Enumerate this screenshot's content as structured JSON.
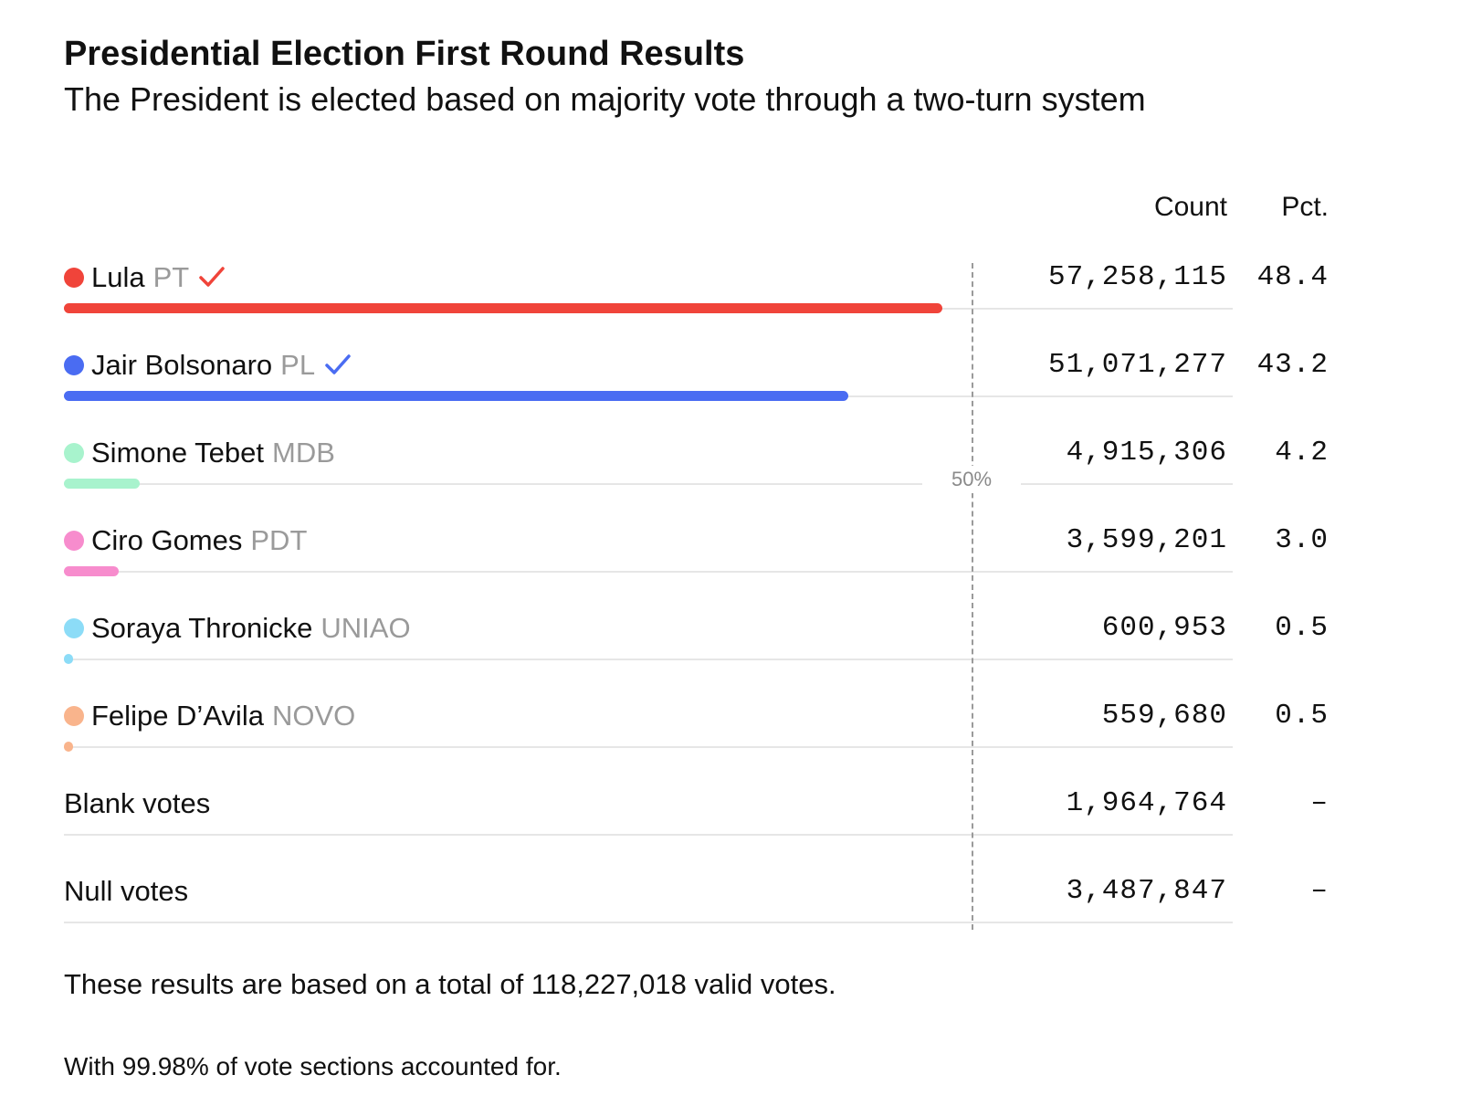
{
  "header": {
    "title": "Presidential Election First Round Results",
    "subtitle": "The President is elected based on majority vote through a two-turn system"
  },
  "columns": {
    "count": "Count",
    "pct": "Pct."
  },
  "chart_data": {
    "type": "bar",
    "orientation": "horizontal",
    "title": "Presidential Election First Round Results",
    "subtitle": "The President is elected based on majority vote through a two-turn system",
    "xlim": [
      0,
      100
    ],
    "reference_line": {
      "value": 50,
      "label": "50%"
    },
    "rows": [
      {
        "name": "Lula",
        "party": "PT",
        "count": "57,258,115",
        "pct": "48.4",
        "value": 48.4,
        "color": "#f0443a",
        "winner": true
      },
      {
        "name": "Jair Bolsonaro",
        "party": "PL",
        "count": "51,071,277",
        "pct": "43.2",
        "value": 43.2,
        "color": "#4a6cf2",
        "winner": true
      },
      {
        "name": "Simone Tebet",
        "party": "MDB",
        "count": "4,915,306",
        "pct": "4.2",
        "value": 4.2,
        "color": "#a8f3cd",
        "winner": false
      },
      {
        "name": "Ciro Gomes",
        "party": "PDT",
        "count": "3,599,201",
        "pct": "3.0",
        "value": 3.0,
        "color": "#f78ccd",
        "winner": false
      },
      {
        "name": "Soraya Thronicke",
        "party": "UNIAO",
        "count": "600,953",
        "pct": "0.5",
        "value": 0.5,
        "color": "#8cdcf7",
        "winner": false
      },
      {
        "name": "Felipe D’Avila",
        "party": "NOVO",
        "count": "559,680",
        "pct": "0.5",
        "value": 0.5,
        "color": "#f9b48c",
        "winner": false
      },
      {
        "name": "Blank votes",
        "party": "",
        "count": "1,964,764",
        "pct": "–",
        "value": null,
        "color": "",
        "winner": false
      },
      {
        "name": "Null votes",
        "party": "",
        "count": "3,487,847",
        "pct": "–",
        "value": null,
        "color": "",
        "winner": false
      }
    ]
  },
  "footer": {
    "note_total": "These results are based on a total of 118,227,018 valid votes.",
    "note_sections": "With 99.98% of vote sections accounted for."
  }
}
